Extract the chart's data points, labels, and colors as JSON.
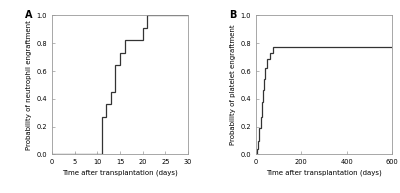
{
  "panel_A": {
    "label": "A",
    "xlabel": "Time after transplantation (days)",
    "ylabel": "Probability of neutrophil engraftment",
    "xlim": [
      0,
      30
    ],
    "ylim": [
      0.0,
      1.0
    ],
    "xticks": [
      0,
      5,
      10,
      15,
      20,
      25,
      30
    ],
    "yticks": [
      0.0,
      0.2,
      0.4,
      0.6,
      0.8,
      1.0
    ],
    "ytick_labels": [
      "0.0",
      "0.2",
      "0.4",
      "0.6",
      "0.8",
      "1.0"
    ],
    "step_x": [
      0,
      11,
      11,
      12,
      12,
      13,
      13,
      14,
      14,
      15,
      15,
      16,
      16,
      20,
      20,
      21,
      21,
      30
    ],
    "step_y": [
      0.0,
      0.0,
      0.27,
      0.27,
      0.36,
      0.36,
      0.45,
      0.45,
      0.64,
      0.64,
      0.73,
      0.73,
      0.82,
      0.82,
      0.91,
      0.91,
      1.0,
      1.0
    ]
  },
  "panel_B": {
    "label": "B",
    "xlabel": "Time after transplantation (days)",
    "ylabel": "Probability of platelet engraftment",
    "xlim": [
      0,
      600
    ],
    "ylim": [
      0.0,
      1.0
    ],
    "xticks": [
      0,
      200,
      400,
      600
    ],
    "yticks": [
      0.0,
      0.2,
      0.4,
      0.6,
      0.8,
      1.0
    ],
    "ytick_labels": [
      "0.0",
      "0.2",
      "0.4",
      "0.6",
      "0.8",
      "1.0"
    ],
    "step_x": [
      0,
      5,
      5,
      10,
      10,
      15,
      15,
      20,
      20,
      25,
      25,
      30,
      30,
      35,
      35,
      40,
      40,
      50,
      50,
      60,
      60,
      75,
      75,
      100,
      100,
      550,
      550,
      600
    ],
    "step_y": [
      0.0,
      0.0,
      0.04,
      0.04,
      0.1,
      0.1,
      0.19,
      0.19,
      0.27,
      0.27,
      0.38,
      0.38,
      0.46,
      0.46,
      0.54,
      0.54,
      0.62,
      0.62,
      0.69,
      0.69,
      0.73,
      0.73,
      0.77,
      0.77,
      0.77,
      0.77,
      0.77,
      0.77
    ]
  },
  "line_color": "#333333",
  "line_width": 0.9,
  "label_fontsize": 5.0,
  "tick_fontsize": 4.8,
  "panel_label_fontsize": 7,
  "bg_color": "#ffffff",
  "spine_color": "#999999"
}
